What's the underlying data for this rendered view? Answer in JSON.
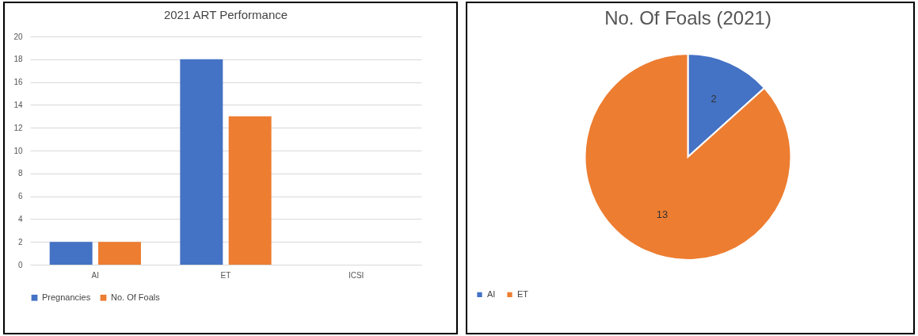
{
  "chart_data": [
    {
      "type": "bar",
      "title": "2021 ART Performance",
      "categories": [
        "AI",
        "ET",
        "ICSI"
      ],
      "series": [
        {
          "name": "Pregnancies",
          "color": "#4472c4",
          "values": [
            2,
            18,
            0
          ]
        },
        {
          "name": "No. Of Foals",
          "color": "#ed7d31",
          "values": [
            2,
            13,
            0
          ]
        }
      ],
      "ylim": [
        0,
        20
      ],
      "yticks": [
        0,
        2,
        4,
        6,
        8,
        10,
        12,
        14,
        16,
        18,
        20
      ],
      "grid": "y",
      "legend": "bottom"
    },
    {
      "type": "pie",
      "title": "No. Of Foals (2021)",
      "categories": [
        "AI",
        "ET"
      ],
      "values": [
        2,
        13
      ],
      "colors": [
        "#4472c4",
        "#ed7d31"
      ],
      "data_labels": true,
      "legend": "bottom"
    }
  ]
}
